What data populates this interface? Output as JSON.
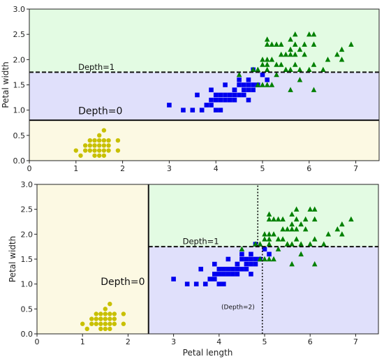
{
  "chart_data": [
    {
      "type": "scatter",
      "xlabel": "",
      "ylabel": "Petal width",
      "xlim": [
        0,
        7.5
      ],
      "ylim": [
        0,
        3.0
      ],
      "xticks": [
        "0",
        "1",
        "2",
        "3",
        "4",
        "5",
        "6",
        "7"
      ],
      "yticks": [
        "0.0",
        "0.5",
        "1.0",
        "1.5",
        "2.0",
        "2.5",
        "3.0"
      ],
      "regions": [
        {
          "x0": 0,
          "x1": 7.5,
          "y0": 0,
          "y1": 0.8,
          "color": "#fcf9e3"
        },
        {
          "x0": 0,
          "x1": 7.5,
          "y0": 0.8,
          "y1": 1.75,
          "color": "#e0e0fb"
        },
        {
          "x0": 0,
          "x1": 7.5,
          "y0": 1.75,
          "y1": 3.0,
          "color": "#e3fbe3"
        }
      ],
      "boundaries": [
        {
          "x0": 0,
          "x1": 7.5,
          "y0": 0.8,
          "y1": 0.8,
          "style": "solid"
        },
        {
          "x0": 0,
          "x1": 7.5,
          "y0": 1.75,
          "y1": 1.75,
          "style": "dashed"
        }
      ],
      "annotations": [
        {
          "text": "Depth=0",
          "x": 1.05,
          "y": 0.92,
          "size": "large"
        },
        {
          "text": "Depth=1",
          "x": 1.05,
          "y": 1.8,
          "size": "small"
        }
      ],
      "series": [
        {
          "marker": "circle",
          "color": "#c8c000",
          "points": [
            [
              1.4,
              0.2
            ],
            [
              1.3,
              0.2
            ],
            [
              1.5,
              0.2
            ],
            [
              1.4,
              0.3
            ],
            [
              1.7,
              0.4
            ],
            [
              1.4,
              0.3
            ],
            [
              1.5,
              0.1
            ],
            [
              1.6,
              0.2
            ],
            [
              1.1,
              0.1
            ],
            [
              1.2,
              0.2
            ],
            [
              1.3,
              0.4
            ],
            [
              1.7,
              0.3
            ],
            [
              1.5,
              0.3
            ],
            [
              1.0,
              0.2
            ],
            [
              1.9,
              0.2
            ],
            [
              1.6,
              0.4
            ],
            [
              1.5,
              0.4
            ],
            [
              1.6,
              0.6
            ],
            [
              1.9,
              0.4
            ],
            [
              1.4,
              0.1
            ],
            [
              1.2,
              0.3
            ],
            [
              1.5,
              0.5
            ],
            [
              1.3,
              0.3
            ],
            [
              1.6,
              0.3
            ],
            [
              1.7,
              0.2
            ],
            [
              1.4,
              0.4
            ],
            [
              1.6,
              0.1
            ]
          ]
        },
        {
          "marker": "square",
          "color": "#0000ee",
          "points": [
            [
              3.0,
              1.1
            ],
            [
              3.3,
              1.0
            ],
            [
              3.5,
              1.0
            ],
            [
              3.6,
              1.3
            ],
            [
              3.8,
              1.1
            ],
            [
              3.9,
              1.4
            ],
            [
              3.9,
              1.1
            ],
            [
              3.9,
              1.2
            ],
            [
              4.0,
              1.0
            ],
            [
              4.0,
              1.3
            ],
            [
              4.0,
              1.2
            ],
            [
              4.1,
              1.0
            ],
            [
              4.1,
              1.3
            ],
            [
              4.2,
              1.3
            ],
            [
              4.2,
              1.2
            ],
            [
              4.2,
              1.5
            ],
            [
              4.3,
              1.3
            ],
            [
              4.4,
              1.4
            ],
            [
              4.4,
              1.3
            ],
            [
              4.4,
              1.2
            ],
            [
              4.5,
              1.5
            ],
            [
              4.5,
              1.3
            ],
            [
              4.5,
              1.6
            ],
            [
              4.6,
              1.4
            ],
            [
              4.6,
              1.3
            ],
            [
              4.6,
              1.5
            ],
            [
              4.7,
              1.4
            ],
            [
              4.7,
              1.2
            ],
            [
              4.7,
              1.5
            ],
            [
              4.7,
              1.6
            ],
            [
              4.8,
              1.4
            ],
            [
              4.8,
              1.8
            ],
            [
              4.9,
              1.5
            ],
            [
              5.0,
              1.7
            ],
            [
              5.1,
              1.6
            ],
            [
              3.7,
              1.0
            ],
            [
              4.1,
              1.2
            ],
            [
              4.3,
              1.2
            ],
            [
              4.4,
              1.4
            ],
            [
              4.8,
              1.5
            ]
          ]
        },
        {
          "marker": "triangle",
          "color": "#008000",
          "points": [
            [
              4.5,
              1.7
            ],
            [
              4.8,
              1.8
            ],
            [
              4.8,
              1.8
            ],
            [
              4.9,
              1.8
            ],
            [
              4.9,
              1.8
            ],
            [
              5.0,
              2.0
            ],
            [
              5.0,
              1.5
            ],
            [
              5.0,
              1.9
            ],
            [
              5.1,
              2.0
            ],
            [
              5.1,
              1.9
            ],
            [
              5.1,
              1.8
            ],
            [
              5.1,
              2.3
            ],
            [
              5.1,
              1.5
            ],
            [
              5.1,
              2.4
            ],
            [
              5.2,
              2.0
            ],
            [
              5.2,
              2.3
            ],
            [
              5.3,
              1.9
            ],
            [
              5.3,
              2.3
            ],
            [
              5.4,
              2.1
            ],
            [
              5.4,
              2.3
            ],
            [
              5.5,
              1.8
            ],
            [
              5.5,
              2.1
            ],
            [
              5.5,
              1.8
            ],
            [
              5.6,
              2.1
            ],
            [
              5.6,
              1.8
            ],
            [
              5.6,
              2.2
            ],
            [
              5.6,
              2.4
            ],
            [
              5.6,
              1.4
            ],
            [
              5.7,
              2.3
            ],
            [
              5.7,
              2.5
            ],
            [
              5.7,
              2.1
            ],
            [
              5.8,
              2.2
            ],
            [
              5.8,
              1.8
            ],
            [
              5.8,
              1.6
            ],
            [
              5.9,
              2.1
            ],
            [
              5.9,
              2.3
            ],
            [
              6.0,
              2.5
            ],
            [
              6.0,
              1.8
            ],
            [
              6.1,
              2.3
            ],
            [
              6.1,
              1.9
            ],
            [
              6.1,
              2.5
            ],
            [
              6.1,
              1.4
            ],
            [
              6.3,
              1.8
            ],
            [
              6.4,
              2.0
            ],
            [
              6.6,
              2.1
            ],
            [
              6.7,
              2.2
            ],
            [
              6.7,
              2.0
            ],
            [
              6.9,
              2.3
            ],
            [
              4.9,
              1.5
            ],
            [
              5.2,
              1.5
            ],
            [
              5.3,
              1.7
            ],
            [
              5.4,
              1.9
            ],
            [
              5.7,
              1.9
            ]
          ]
        }
      ]
    },
    {
      "type": "scatter",
      "xlabel": "Petal length",
      "ylabel": "Petal width",
      "xlim": [
        0,
        7.5
      ],
      "ylim": [
        0,
        3.0
      ],
      "xticks": [
        "0",
        "1",
        "2",
        "3",
        "4",
        "5",
        "6",
        "7"
      ],
      "yticks": [
        "0.0",
        "0.5",
        "1.0",
        "1.5",
        "2.0",
        "2.5",
        "3.0"
      ],
      "regions": [
        {
          "x0": 0,
          "x1": 2.45,
          "y0": 0,
          "y1": 3.0,
          "color": "#fcf9e3"
        },
        {
          "x0": 2.45,
          "x1": 7.5,
          "y0": 0,
          "y1": 1.75,
          "color": "#e0e0fb"
        },
        {
          "x0": 2.45,
          "x1": 7.5,
          "y0": 1.75,
          "y1": 3.0,
          "color": "#e3fbe3"
        }
      ],
      "boundaries": [
        {
          "x0": 2.45,
          "x1": 2.45,
          "y0": 0,
          "y1": 3.0,
          "style": "solid"
        },
        {
          "x0": 2.45,
          "x1": 7.5,
          "y0": 1.75,
          "y1": 1.75,
          "style": "dashed"
        },
        {
          "x0": 4.95,
          "x1": 4.95,
          "y0": 0,
          "y1": 1.75,
          "style": "dotted"
        },
        {
          "x0": 4.85,
          "x1": 4.85,
          "y0": 1.75,
          "y1": 3.0,
          "style": "dotted"
        }
      ],
      "annotations": [
        {
          "text": "Depth=0",
          "x": 1.4,
          "y": 0.98,
          "size": "large"
        },
        {
          "text": "Depth=1",
          "x": 3.2,
          "y": 1.8,
          "size": "small"
        },
        {
          "text": "(Depth=2)",
          "x": 4.05,
          "y": 0.5,
          "size": "tiny"
        }
      ],
      "series": [
        {
          "marker": "circle",
          "color": "#c8c000",
          "points": [
            [
              1.4,
              0.2
            ],
            [
              1.3,
              0.2
            ],
            [
              1.5,
              0.2
            ],
            [
              1.4,
              0.3
            ],
            [
              1.7,
              0.4
            ],
            [
              1.4,
              0.3
            ],
            [
              1.5,
              0.1
            ],
            [
              1.6,
              0.2
            ],
            [
              1.1,
              0.1
            ],
            [
              1.2,
              0.2
            ],
            [
              1.3,
              0.4
            ],
            [
              1.7,
              0.3
            ],
            [
              1.5,
              0.3
            ],
            [
              1.0,
              0.2
            ],
            [
              1.9,
              0.2
            ],
            [
              1.6,
              0.4
            ],
            [
              1.5,
              0.4
            ],
            [
              1.6,
              0.6
            ],
            [
              1.9,
              0.4
            ],
            [
              1.4,
              0.1
            ],
            [
              1.2,
              0.3
            ],
            [
              1.5,
              0.5
            ],
            [
              1.3,
              0.3
            ],
            [
              1.6,
              0.3
            ],
            [
              1.7,
              0.2
            ],
            [
              1.4,
              0.4
            ],
            [
              1.6,
              0.1
            ]
          ]
        },
        {
          "marker": "square",
          "color": "#0000ee",
          "points": [
            [
              3.0,
              1.1
            ],
            [
              3.3,
              1.0
            ],
            [
              3.5,
              1.0
            ],
            [
              3.6,
              1.3
            ],
            [
              3.8,
              1.1
            ],
            [
              3.9,
              1.4
            ],
            [
              3.9,
              1.1
            ],
            [
              3.9,
              1.2
            ],
            [
              4.0,
              1.0
            ],
            [
              4.0,
              1.3
            ],
            [
              4.0,
              1.2
            ],
            [
              4.1,
              1.0
            ],
            [
              4.1,
              1.3
            ],
            [
              4.2,
              1.3
            ],
            [
              4.2,
              1.2
            ],
            [
              4.2,
              1.5
            ],
            [
              4.3,
              1.3
            ],
            [
              4.4,
              1.4
            ],
            [
              4.4,
              1.3
            ],
            [
              4.4,
              1.2
            ],
            [
              4.5,
              1.5
            ],
            [
              4.5,
              1.3
            ],
            [
              4.5,
              1.6
            ],
            [
              4.6,
              1.4
            ],
            [
              4.6,
              1.3
            ],
            [
              4.6,
              1.5
            ],
            [
              4.7,
              1.4
            ],
            [
              4.7,
              1.2
            ],
            [
              4.7,
              1.5
            ],
            [
              4.7,
              1.6
            ],
            [
              4.8,
              1.4
            ],
            [
              4.8,
              1.8
            ],
            [
              4.9,
              1.5
            ],
            [
              5.0,
              1.7
            ],
            [
              5.1,
              1.6
            ],
            [
              3.7,
              1.0
            ],
            [
              4.1,
              1.2
            ],
            [
              4.3,
              1.2
            ],
            [
              4.4,
              1.4
            ],
            [
              4.8,
              1.5
            ]
          ]
        },
        {
          "marker": "triangle",
          "color": "#008000",
          "points": [
            [
              4.5,
              1.7
            ],
            [
              4.8,
              1.8
            ],
            [
              4.8,
              1.8
            ],
            [
              4.9,
              1.8
            ],
            [
              4.9,
              1.8
            ],
            [
              5.0,
              2.0
            ],
            [
              5.0,
              1.5
            ],
            [
              5.0,
              1.9
            ],
            [
              5.1,
              2.0
            ],
            [
              5.1,
              1.9
            ],
            [
              5.1,
              1.8
            ],
            [
              5.1,
              2.3
            ],
            [
              5.1,
              1.5
            ],
            [
              5.1,
              2.4
            ],
            [
              5.2,
              2.0
            ],
            [
              5.2,
              2.3
            ],
            [
              5.3,
              1.9
            ],
            [
              5.3,
              2.3
            ],
            [
              5.4,
              2.1
            ],
            [
              5.4,
              2.3
            ],
            [
              5.5,
              1.8
            ],
            [
              5.5,
              2.1
            ],
            [
              5.5,
              1.8
            ],
            [
              5.6,
              2.1
            ],
            [
              5.6,
              1.8
            ],
            [
              5.6,
              2.2
            ],
            [
              5.6,
              2.4
            ],
            [
              5.6,
              1.4
            ],
            [
              5.7,
              2.3
            ],
            [
              5.7,
              2.5
            ],
            [
              5.7,
              2.1
            ],
            [
              5.8,
              2.2
            ],
            [
              5.8,
              1.8
            ],
            [
              5.8,
              1.6
            ],
            [
              5.9,
              2.1
            ],
            [
              5.9,
              2.3
            ],
            [
              6.0,
              2.5
            ],
            [
              6.0,
              1.8
            ],
            [
              6.1,
              2.3
            ],
            [
              6.1,
              1.9
            ],
            [
              6.1,
              2.5
            ],
            [
              6.1,
              1.4
            ],
            [
              6.3,
              1.8
            ],
            [
              6.4,
              2.0
            ],
            [
              6.6,
              2.1
            ],
            [
              6.7,
              2.2
            ],
            [
              6.7,
              2.0
            ],
            [
              6.9,
              2.3
            ],
            [
              4.9,
              1.5
            ],
            [
              5.2,
              1.5
            ],
            [
              5.3,
              1.7
            ],
            [
              5.4,
              1.9
            ],
            [
              5.7,
              1.9
            ]
          ]
        }
      ]
    }
  ]
}
